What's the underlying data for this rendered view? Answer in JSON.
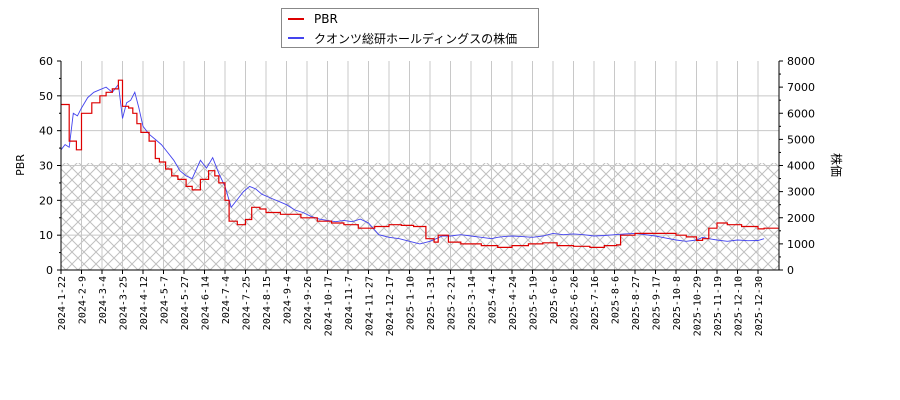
{
  "legend": {
    "items": [
      {
        "label": "PBR",
        "color": "#dd0000"
      },
      {
        "label": "クオンツ総研ホールディングスの株価",
        "color": "#4444ee"
      }
    ]
  },
  "axes": {
    "left_title": "PBR",
    "right_title": "株価",
    "left_ticks": [
      "0",
      "10",
      "20",
      "30",
      "40",
      "50",
      "60"
    ],
    "right_ticks": [
      "0",
      "1000",
      "2000",
      "3000",
      "4000",
      "5000",
      "6000",
      "7000",
      "8000"
    ]
  },
  "chart_data": {
    "type": "line",
    "title": "",
    "xlabel": "",
    "ylabel": "PBR",
    "y2label": "株価",
    "ylim": [
      0,
      60
    ],
    "y2lim": [
      0,
      8000
    ],
    "grid": true,
    "legend_position": "top-center",
    "hatched_region": {
      "axis": "PBR",
      "from": 0,
      "to": 30.5
    },
    "categories": [
      "2024-1-22",
      "2024-2-9",
      "2024-3-4",
      "2024-3-25",
      "2024-4-12",
      "2024-5-7",
      "2024-5-27",
      "2024-6-14",
      "2024-7-4",
      "2024-7-25",
      "2024-8-15",
      "2024-9-4",
      "2024-9-26",
      "2024-10-17",
      "2024-11-7",
      "2024-11-27",
      "2024-12-17",
      "2025-1-10",
      "2025-1-31",
      "2025-2-21",
      "2025-3-14",
      "2025-4-4",
      "2025-4-24",
      "2025-5-19",
      "2025-6-6",
      "2025-6-26",
      "2025-7-16",
      "2025-8-6",
      "2025-8-27",
      "2025-9-17",
      "2025-10-8",
      "2025-10-29",
      "2025-11-19",
      "2025-12-10",
      "2025-12-30"
    ],
    "series": [
      {
        "name": "PBR",
        "axis": "left",
        "color": "#dd0000",
        "x_index": [
          0,
          0.35,
          0.4,
          0.7,
          0.75,
          1.0,
          1.3,
          1.5,
          1.9,
          2.2,
          2.5,
          2.8,
          3.0,
          3.3,
          3.5,
          3.7,
          3.9,
          4.3,
          4.6,
          4.8,
          5.1,
          5.4,
          5.7,
          6.1,
          6.4,
          6.8,
          7.2,
          7.5,
          7.7,
          8.0,
          8.2,
          8.6,
          9.0,
          9.3,
          9.7,
          10.0,
          10.4,
          10.7,
          11.3,
          11.7,
          12.5,
          13.2,
          13.8,
          14.5,
          15.3,
          16.0,
          16.6,
          17.2,
          17.8,
          18.2,
          18.4,
          18.9,
          19.5,
          20.5,
          21.3,
          22.0,
          22.8,
          23.5,
          24.2,
          25.0,
          25.8,
          26.5,
          27.1,
          27.3,
          28.0,
          29.0,
          30.0,
          30.5,
          31.0,
          31.3,
          31.6,
          32.0,
          32.5,
          33.2,
          34.0,
          34.3
        ],
        "values": [
          47.5,
          47.5,
          37,
          37,
          34.5,
          45,
          45,
          48,
          50,
          51,
          52,
          54.5,
          47,
          46.5,
          45,
          42,
          39.5,
          37,
          32,
          31,
          29,
          27,
          26,
          24,
          23,
          26,
          28.5,
          27,
          25,
          20,
          14,
          13,
          14.5,
          18,
          17.5,
          16.5,
          16.5,
          16,
          16,
          15,
          14,
          13.5,
          13,
          12,
          12.5,
          13,
          12.8,
          12.5,
          9,
          8,
          10,
          8,
          7.5,
          7,
          6.5,
          7,
          7.5,
          7.8,
          7,
          6.8,
          6.5,
          7,
          7.2,
          10,
          10.5,
          10.5,
          10,
          9.5,
          8.5,
          9,
          12,
          13.5,
          13,
          12.5,
          11.8,
          12
        ],
        "last_value": 12
      },
      {
        "name": "クオンツ総研ホールディングスの株価",
        "axis": "right",
        "color": "#4444ee",
        "x_index": [
          0,
          0.2,
          0.4,
          0.6,
          0.8,
          1.0,
          1.3,
          1.6,
          1.9,
          2.2,
          2.5,
          2.8,
          3.0,
          3.2,
          3.4,
          3.6,
          3.8,
          4.0,
          4.3,
          4.6,
          4.9,
          5.2,
          5.5,
          5.8,
          6.1,
          6.4,
          6.8,
          7.1,
          7.4,
          7.7,
          8.0,
          8.3,
          8.6,
          8.9,
          9.2,
          9.5,
          9.8,
          10.1,
          10.4,
          10.7,
          11.0,
          11.4,
          11.8,
          12.2,
          12.6,
          13.0,
          13.4,
          13.8,
          14.2,
          14.6,
          15.0,
          15.5,
          16.0,
          16.5,
          17.0,
          17.5,
          18.0,
          18.3,
          18.6,
          19.0,
          19.5,
          20.0,
          20.5,
          21.0,
          21.3,
          21.6,
          22.0,
          22.5,
          23.0,
          23.5,
          24.0,
          24.5,
          25.0,
          25.5,
          26.0,
          26.5,
          27.0,
          27.5,
          28.0,
          28.5,
          29.0,
          29.5,
          30.0,
          30.5,
          31.0,
          31.3,
          31.6,
          32.0,
          32.5,
          33.0,
          33.5,
          34.0,
          34.3
        ],
        "values": [
          4600,
          4800,
          4700,
          6000,
          5900,
          6200,
          6600,
          6800,
          6900,
          7000,
          6800,
          7100,
          5800,
          6400,
          6500,
          6800,
          6200,
          5500,
          5200,
          5000,
          4800,
          4500,
          4200,
          3800,
          3600,
          3500,
          4200,
          3900,
          4300,
          3700,
          3200,
          2400,
          2700,
          3000,
          3200,
          3100,
          2900,
          2800,
          2700,
          2600,
          2500,
          2300,
          2200,
          2050,
          1950,
          1900,
          1850,
          1900,
          1850,
          1950,
          1800,
          1350,
          1250,
          1200,
          1100,
          1000,
          1100,
          1200,
          1300,
          1300,
          1350,
          1300,
          1250,
          1200,
          1250,
          1280,
          1300,
          1280,
          1250,
          1300,
          1400,
          1350,
          1380,
          1350,
          1300,
          1320,
          1350,
          1380,
          1400,
          1350,
          1300,
          1220,
          1150,
          1100,
          1150,
          1250,
          1200,
          1150,
          1100,
          1150,
          1120,
          1130,
          1200
        ]
      }
    ]
  }
}
